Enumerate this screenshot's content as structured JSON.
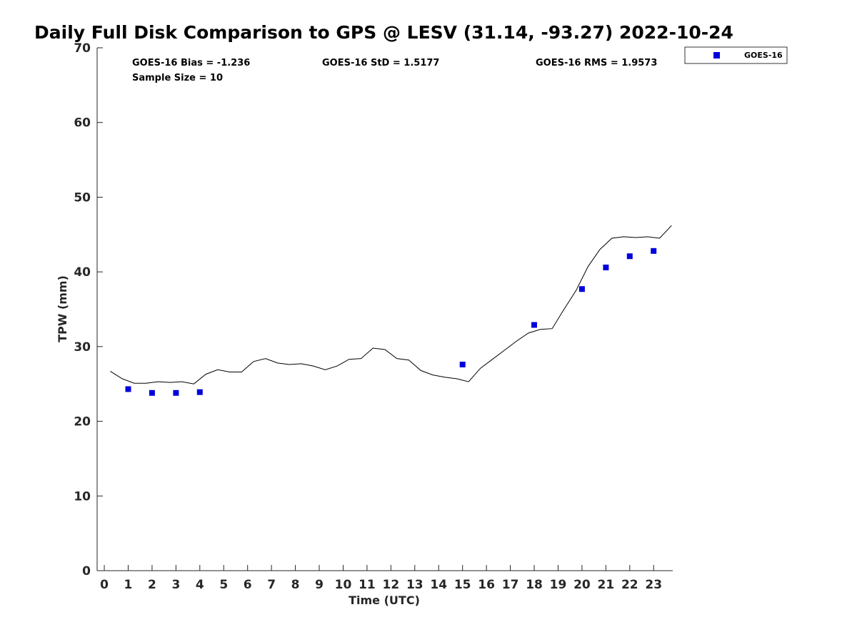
{
  "chart_data": {
    "type": "line+scatter",
    "title": "Daily Full Disk Comparison to GPS @ LESV (31.14, -93.27) 2022-10-24",
    "xlabel": "Time (UTC)",
    "ylabel": "TPW (mm)",
    "xlim": [
      -0.3,
      23.8
    ],
    "ylim": [
      0,
      70
    ],
    "xticks": [
      0,
      1,
      2,
      3,
      4,
      5,
      6,
      7,
      8,
      9,
      10,
      11,
      12,
      13,
      14,
      15,
      16,
      17,
      18,
      19,
      20,
      21,
      22,
      23
    ],
    "yticks": [
      0,
      10,
      20,
      30,
      40,
      50,
      60,
      70
    ],
    "stats": {
      "bias": "GOES-16 Bias = -1.236",
      "sample_size": "Sample Size = 10",
      "std": "GOES-16 StD = 1.5177",
      "rms": "GOES-16 RMS = 1.9573"
    },
    "legend": {
      "position": "top-right, outside",
      "entries": [
        "GOES-16"
      ]
    },
    "series": [
      {
        "name": "GPS",
        "kind": "line",
        "color": "#000000",
        "x": [
          0.25,
          0.75,
          1.25,
          1.75,
          2.25,
          2.75,
          3.25,
          3.75,
          4.25,
          4.75,
          5.25,
          5.75,
          6.25,
          6.75,
          7.25,
          7.75,
          8.25,
          8.75,
          9.25,
          9.75,
          10.25,
          10.75,
          11.25,
          11.75,
          12.25,
          12.75,
          13.25,
          13.75,
          14.25,
          14.75,
          15.25,
          15.75,
          16.25,
          16.75,
          17.25,
          17.75,
          18.25,
          18.75,
          19.25,
          19.75,
          20.25,
          20.75,
          21.25,
          21.75,
          22.25,
          22.75,
          23.25,
          23.75
        ],
        "y": [
          26.7,
          25.7,
          25.1,
          25.1,
          25.3,
          25.2,
          25.3,
          25.0,
          26.3,
          26.9,
          26.6,
          26.6,
          28.0,
          28.4,
          27.8,
          27.6,
          27.7,
          27.4,
          26.9,
          27.4,
          28.3,
          28.4,
          29.8,
          29.6,
          28.4,
          28.2,
          26.8,
          26.2,
          25.9,
          25.7,
          25.3,
          27.1,
          28.3,
          29.5,
          30.7,
          31.8,
          32.3,
          32.4,
          35.0,
          37.5,
          40.7,
          43.0,
          44.5,
          44.7,
          44.6,
          44.7,
          44.5,
          46.2
        ]
      },
      {
        "name": "GOES-16",
        "kind": "scatter",
        "color": "#0000dd",
        "x": [
          1,
          2,
          3,
          4,
          15,
          18,
          20,
          21,
          22,
          23
        ],
        "y": [
          24.3,
          23.8,
          23.8,
          23.9,
          27.6,
          32.9,
          37.7,
          40.6,
          42.1,
          42.8
        ]
      }
    ]
  }
}
